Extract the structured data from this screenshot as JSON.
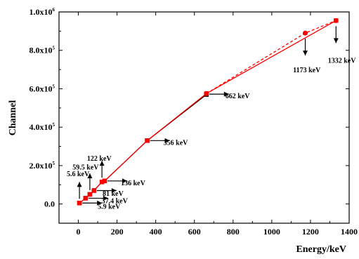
{
  "chart_data": {
    "type": "line",
    "title": "",
    "xlabel": "Energy/keV",
    "ylabel": "Channel",
    "xlim": [
      -100,
      1400
    ],
    "ylim": [
      -100000,
      1000000
    ],
    "grid": false,
    "legend": "none",
    "x_ticks": [
      {
        "value": 0,
        "label": "0"
      },
      {
        "value": 200,
        "label": "200"
      },
      {
        "value": 400,
        "label": "400"
      },
      {
        "value": 600,
        "label": "600"
      },
      {
        "value": 800,
        "label": "800"
      },
      {
        "value": 1000,
        "label": "1000"
      },
      {
        "value": 1200,
        "label": "1200"
      },
      {
        "value": 1400,
        "label": "1400"
      }
    ],
    "y_ticks": [
      {
        "value": 0,
        "mant": "0.0",
        "exp": ""
      },
      {
        "value": 200000,
        "mant": "2.0x10",
        "exp": "5"
      },
      {
        "value": 400000,
        "mant": "4.0x10",
        "exp": "5"
      },
      {
        "value": 600000,
        "mant": "6.0x10",
        "exp": "5"
      },
      {
        "value": 800000,
        "mant": "8.0x10",
        "exp": "5"
      },
      {
        "value": 1000000,
        "mant": "1.0x10",
        "exp": "6"
      }
    ],
    "series": [
      {
        "color": "#000000",
        "marker": "square",
        "style": "solid",
        "x": [
          5.9,
          5.6,
          37.4,
          59.5,
          81,
          122,
          136,
          356,
          662
        ],
        "y": [
          5000,
          5000,
          30000,
          50000,
          70000,
          115000,
          120000,
          330000,
          570000
        ]
      },
      {
        "color": "#ff0000",
        "marker": "square",
        "style": "solid",
        "x": [
          5.9,
          5.6,
          37.4,
          59.5,
          81,
          122,
          136,
          356,
          662,
          1332
        ],
        "y": [
          5000,
          5000,
          30000,
          50000,
          70000,
          115000,
          120000,
          330000,
          575000,
          955000
        ]
      },
      {
        "color": "#ff0000",
        "marker": "circle",
        "style": "dashed",
        "x": [
          662,
          1173,
          1332
        ],
        "y": [
          575000,
          890000,
          955000
        ]
      }
    ],
    "annotations": [
      {
        "text": "5.9 keV",
        "x": 5.9,
        "y": 5000,
        "dir": "right",
        "tx": 100,
        "ty": -10000
      },
      {
        "text": "37.4 keV",
        "x": 37.4,
        "y": 30000,
        "dir": "right",
        "tx": 120,
        "ty": 18000
      },
      {
        "text": "81 keV",
        "x": 81,
        "y": 70000,
        "dir": "right",
        "tx": 125,
        "ty": 57000
      },
      {
        "text": "136 keV",
        "x": 136,
        "y": 120000,
        "dir": "right",
        "tx": 220,
        "ty": 112000
      },
      {
        "text": "356 keV",
        "x": 356,
        "y": 330000,
        "dir": "right",
        "tx": 440,
        "ty": 322000
      },
      {
        "text": "662 keV",
        "x": 662,
        "y": 572000,
        "dir": "right",
        "tx": 760,
        "ty": 565000
      },
      {
        "text": "5.6 keV",
        "x": 5.6,
        "y": 5000,
        "dir": "up",
        "tx": -60,
        "ty": 160000
      },
      {
        "text": "59.5 keV",
        "x": 59.5,
        "y": 50000,
        "dir": "up",
        "tx": -30,
        "ty": 195000
      },
      {
        "text": "122 keV",
        "x": 122,
        "y": 115000,
        "dir": "up",
        "tx": 45,
        "ty": 240000
      },
      {
        "text": "1173 keV",
        "x": 1173,
        "y": 890000,
        "dir": "down",
        "tx": 1110,
        "ty": 700000
      },
      {
        "text": "1332 keV",
        "x": 1332,
        "y": 955000,
        "dir": "down",
        "tx": 1290,
        "ty": 750000
      }
    ]
  }
}
